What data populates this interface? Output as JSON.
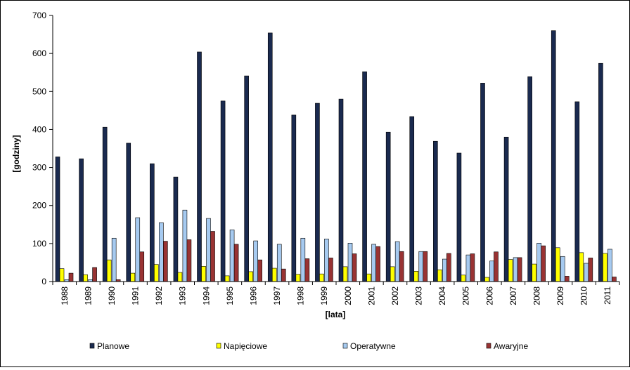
{
  "chart_data": {
    "type": "bar",
    "xlabel": "[lata]",
    "ylabel": "[godziny]",
    "ylim": [
      0,
      700
    ],
    "yticks": [
      0,
      100,
      200,
      300,
      400,
      500,
      600,
      700
    ],
    "grid": false,
    "legend_position": "bottom",
    "categories": [
      "1988",
      "1989",
      "1990",
      "1991",
      "1992",
      "1993",
      "1994",
      "1995",
      "1996",
      "1997",
      "1998",
      "1999",
      "2000",
      "2001",
      "2002",
      "2003",
      "2004",
      "2005",
      "2006",
      "2007",
      "2008",
      "2009",
      "2010",
      "2011"
    ],
    "series": [
      {
        "name": "Planowe",
        "color": "#1a2a4f",
        "values": [
          328,
          323,
          406,
          364,
          310,
          275,
          604,
          475,
          541,
          654,
          438,
          469,
          480,
          552,
          393,
          434,
          369,
          338,
          522,
          380,
          539,
          660,
          473,
          574
        ]
      },
      {
        "name": "Napięciowe",
        "color": "#ffff00",
        "values": [
          34,
          18,
          57,
          22,
          45,
          24,
          40,
          15,
          26,
          35,
          19,
          20,
          39,
          20,
          39,
          27,
          31,
          17,
          11,
          58,
          46,
          89,
          76,
          74
        ]
      },
      {
        "name": "Operatywne",
        "color": "#a6caf0",
        "values": [
          5,
          5,
          114,
          168,
          155,
          188,
          166,
          136,
          107,
          98,
          114,
          112,
          101,
          98,
          105,
          79,
          59,
          70,
          54,
          63,
          101,
          66,
          48,
          85
        ]
      },
      {
        "name": "Awaryjne",
        "color": "#993333",
        "values": [
          22,
          37,
          5,
          78,
          106,
          110,
          132,
          98,
          57,
          33,
          60,
          62,
          73,
          92,
          79,
          79,
          74,
          73,
          78,
          63,
          94,
          14,
          62,
          12
        ]
      }
    ]
  }
}
